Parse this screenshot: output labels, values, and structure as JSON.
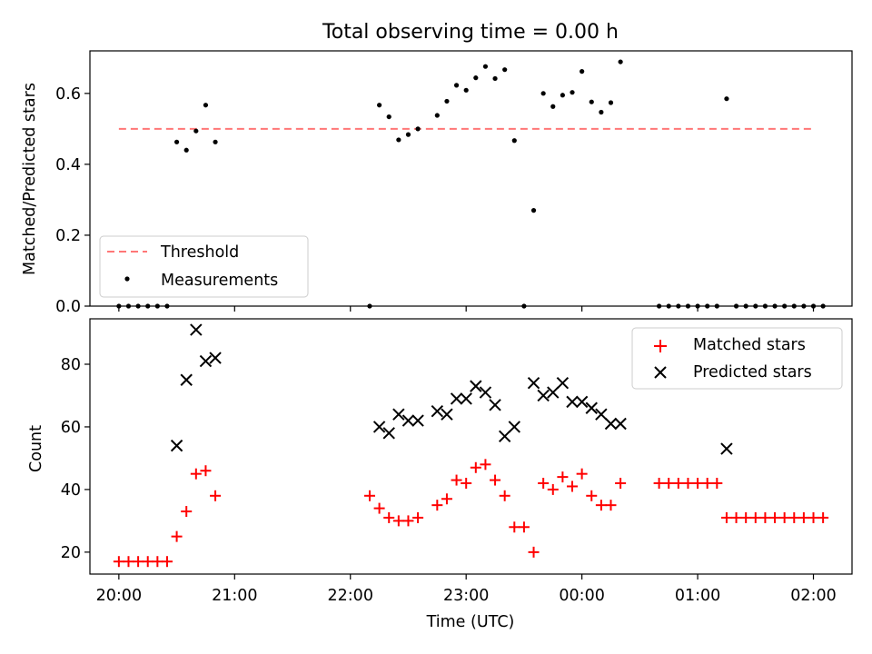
{
  "chart_data": [
    {
      "type": "scatter",
      "title": "Total observing time = 0.00 h",
      "xlabel": "",
      "ylabel": "Matched/Predicted stars",
      "ylim": [
        0,
        0.72
      ],
      "yticks": [
        0.0,
        0.2,
        0.4,
        0.6
      ],
      "ytick_labels": [
        "0.0",
        "0.2",
        "0.4",
        "0.6"
      ],
      "threshold": {
        "name": "Threshold",
        "value": 0.5,
        "color": "#ff7777",
        "style": "dashed",
        "x_start": "20:00",
        "x_end": "02:00"
      },
      "series": [
        {
          "name": "Measurements",
          "color": "#000000",
          "points": [
            [
              "20:00",
              0.0
            ],
            [
              "20:05",
              0.0
            ],
            [
              "20:10",
              0.0
            ],
            [
              "20:15",
              0.0
            ],
            [
              "20:20",
              0.0
            ],
            [
              "20:25",
              0.0
            ],
            [
              "20:30",
              0.463
            ],
            [
              "20:35",
              0.44
            ],
            [
              "20:40",
              0.494
            ],
            [
              "20:45",
              0.567
            ],
            [
              "20:50",
              0.463
            ],
            [
              "22:10",
              0.0
            ],
            [
              "22:15",
              0.567
            ],
            [
              "22:20",
              0.534
            ],
            [
              "22:25",
              0.469
            ],
            [
              "22:30",
              0.484
            ],
            [
              "22:35",
              0.5
            ],
            [
              "22:45",
              0.538
            ],
            [
              "22:50",
              0.578
            ],
            [
              "22:55",
              0.623
            ],
            [
              "23:00",
              0.609
            ],
            [
              "23:05",
              0.644
            ],
            [
              "23:10",
              0.676
            ],
            [
              "23:15",
              0.642
            ],
            [
              "23:20",
              0.667
            ],
            [
              "23:25",
              0.467
            ],
            [
              "23:30",
              0.0
            ],
            [
              "23:35",
              0.27
            ],
            [
              "23:40",
              0.6
            ],
            [
              "23:45",
              0.563
            ],
            [
              "23:50",
              0.595
            ],
            [
              "23:55",
              0.603
            ],
            [
              "00:00",
              0.662
            ],
            [
              "00:05",
              0.576
            ],
            [
              "00:10",
              0.547
            ],
            [
              "00:15",
              0.574
            ],
            [
              "00:20",
              0.689
            ],
            [
              "00:40",
              0.0
            ],
            [
              "00:45",
              0.0
            ],
            [
              "00:50",
              0.0
            ],
            [
              "00:55",
              0.0
            ],
            [
              "01:00",
              0.0
            ],
            [
              "01:05",
              0.0
            ],
            [
              "01:10",
              0.0
            ],
            [
              "01:15",
              0.585
            ],
            [
              "01:20",
              0.0
            ],
            [
              "01:25",
              0.0
            ],
            [
              "01:30",
              0.0
            ],
            [
              "01:35",
              0.0
            ],
            [
              "01:40",
              0.0
            ],
            [
              "01:45",
              0.0
            ],
            [
              "01:50",
              0.0
            ],
            [
              "01:55",
              0.0
            ],
            [
              "02:00",
              0.0
            ],
            [
              "02:05",
              0.0
            ]
          ]
        }
      ],
      "legend": {
        "position": "lower-left",
        "entries": [
          "Threshold",
          "Measurements"
        ]
      }
    },
    {
      "type": "scatter",
      "title": "",
      "xlabel": "Time (UTC)",
      "ylabel": "Count",
      "ylim": [
        13,
        94.5
      ],
      "yticks": [
        20,
        40,
        60,
        80
      ],
      "ytick_labels": [
        "20",
        "40",
        "60",
        "80"
      ],
      "x_range": [
        "19:45",
        "02:20"
      ],
      "xticks": [
        "20:00",
        "21:00",
        "22:00",
        "23:00",
        "00:00",
        "01:00",
        "02:00"
      ],
      "series": [
        {
          "name": "Matched stars",
          "marker": "+",
          "color": "#ff0000",
          "points": [
            [
              "20:00",
              17
            ],
            [
              "20:05",
              17
            ],
            [
              "20:10",
              17
            ],
            [
              "20:15",
              17
            ],
            [
              "20:20",
              17
            ],
            [
              "20:25",
              17
            ],
            [
              "20:30",
              25
            ],
            [
              "20:35",
              33
            ],
            [
              "20:40",
              45
            ],
            [
              "20:45",
              46
            ],
            [
              "20:50",
              38
            ],
            [
              "22:10",
              38
            ],
            [
              "22:15",
              34
            ],
            [
              "22:20",
              31
            ],
            [
              "22:25",
              30
            ],
            [
              "22:30",
              30
            ],
            [
              "22:35",
              31
            ],
            [
              "22:45",
              35
            ],
            [
              "22:50",
              37
            ],
            [
              "22:55",
              43
            ],
            [
              "23:00",
              42
            ],
            [
              "23:05",
              47
            ],
            [
              "23:10",
              48
            ],
            [
              "23:15",
              43
            ],
            [
              "23:20",
              38
            ],
            [
              "23:25",
              28
            ],
            [
              "23:30",
              28
            ],
            [
              "23:35",
              20
            ],
            [
              "23:40",
              42
            ],
            [
              "23:45",
              40
            ],
            [
              "23:50",
              44
            ],
            [
              "23:55",
              41
            ],
            [
              "00:00",
              45
            ],
            [
              "00:05",
              38
            ],
            [
              "00:10",
              35
            ],
            [
              "00:15",
              35
            ],
            [
              "00:20",
              42
            ],
            [
              "00:40",
              42
            ],
            [
              "00:45",
              42
            ],
            [
              "00:50",
              42
            ],
            [
              "00:55",
              42
            ],
            [
              "01:00",
              42
            ],
            [
              "01:05",
              42
            ],
            [
              "01:10",
              42
            ],
            [
              "01:15",
              31
            ],
            [
              "01:20",
              31
            ],
            [
              "01:25",
              31
            ],
            [
              "01:30",
              31
            ],
            [
              "01:35",
              31
            ],
            [
              "01:40",
              31
            ],
            [
              "01:45",
              31
            ],
            [
              "01:50",
              31
            ],
            [
              "01:55",
              31
            ],
            [
              "02:00",
              31
            ],
            [
              "02:05",
              31
            ]
          ]
        },
        {
          "name": "Predicted stars",
          "marker": "x",
          "color": "#000000",
          "points": [
            [
              "20:30",
              54
            ],
            [
              "20:35",
              75
            ],
            [
              "20:40",
              91
            ],
            [
              "20:45",
              81
            ],
            [
              "20:50",
              82
            ],
            [
              "22:15",
              60
            ],
            [
              "22:20",
              58
            ],
            [
              "22:25",
              64
            ],
            [
              "22:30",
              62
            ],
            [
              "22:35",
              62
            ],
            [
              "22:45",
              65
            ],
            [
              "22:50",
              64
            ],
            [
              "22:55",
              69
            ],
            [
              "23:00",
              69
            ],
            [
              "23:05",
              73
            ],
            [
              "23:10",
              71
            ],
            [
              "23:15",
              67
            ],
            [
              "23:20",
              57
            ],
            [
              "23:25",
              60
            ],
            [
              "23:35",
              74
            ],
            [
              "23:40",
              70
            ],
            [
              "23:45",
              71
            ],
            [
              "23:50",
              74
            ],
            [
              "23:55",
              68
            ],
            [
              "00:00",
              68
            ],
            [
              "00:05",
              66
            ],
            [
              "00:10",
              64
            ],
            [
              "00:15",
              61
            ],
            [
              "00:20",
              61
            ],
            [
              "01:15",
              53
            ]
          ]
        }
      ],
      "legend": {
        "position": "top-right",
        "entries": [
          "Matched stars",
          "Predicted stars"
        ]
      }
    }
  ]
}
